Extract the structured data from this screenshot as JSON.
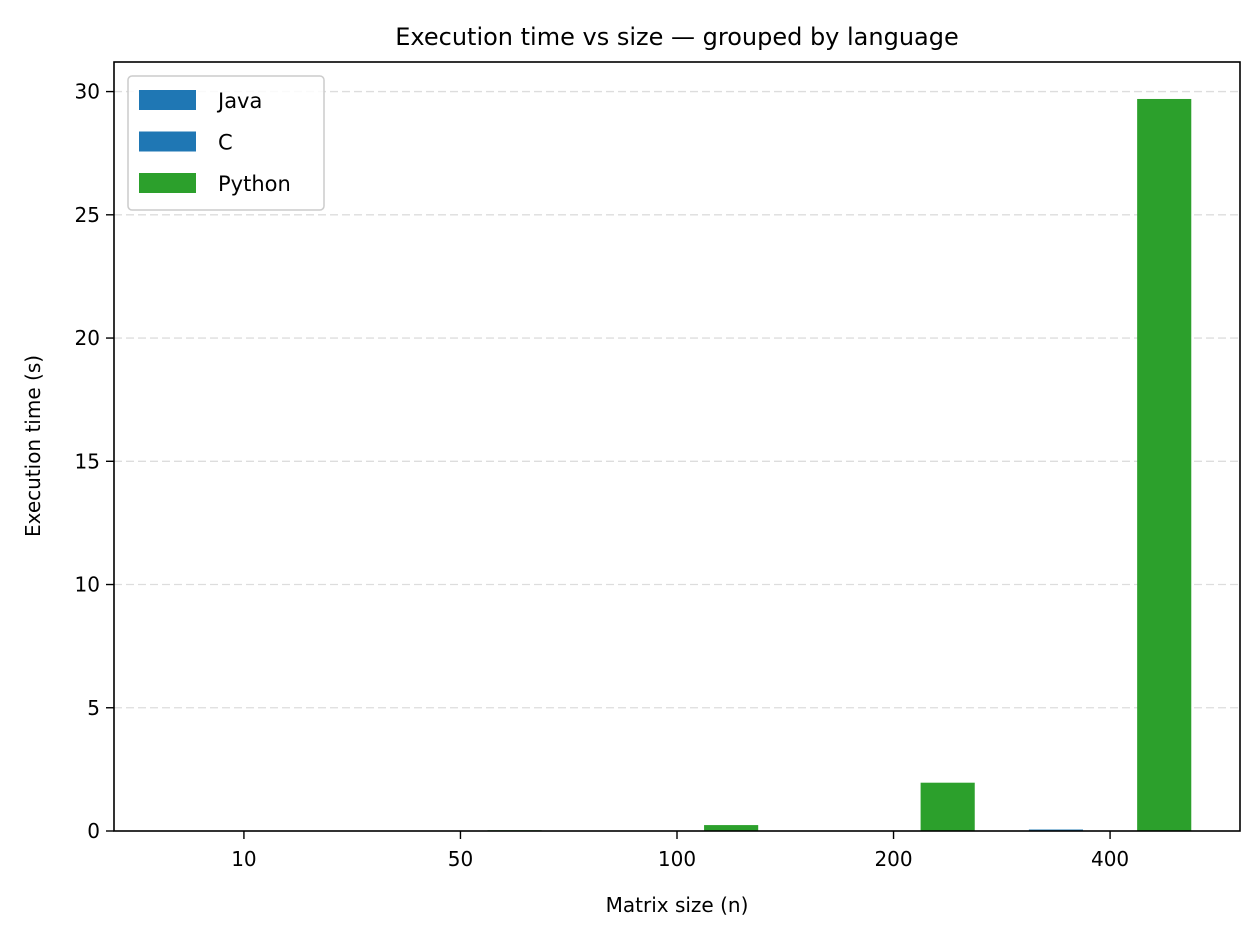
{
  "chart_data": {
    "type": "bar",
    "title": "Execution time vs size — grouped by language",
    "xlabel": "Matrix size (n)",
    "ylabel": "Execution time (s)",
    "categories": [
      "10",
      "50",
      "100",
      "200",
      "400"
    ],
    "series": [
      {
        "name": "Java",
        "color": "#1f77b4",
        "values": [
          0.0,
          0.0,
          0.0,
          0.01,
          0.06
        ]
      },
      {
        "name": "C",
        "color": "#1f77b4",
        "values": [
          0.0,
          0.0,
          0.0,
          0.0,
          0.02
        ]
      },
      {
        "name": "Python",
        "color": "#2ca02c",
        "values": [
          0.0,
          0.03,
          0.24,
          1.96,
          29.7
        ]
      }
    ],
    "ylim": [
      0,
      31.2
    ],
    "yticks": [
      0,
      5,
      10,
      15,
      20,
      25,
      30
    ],
    "grid": "y-dashed",
    "legend_position": "top-left"
  }
}
